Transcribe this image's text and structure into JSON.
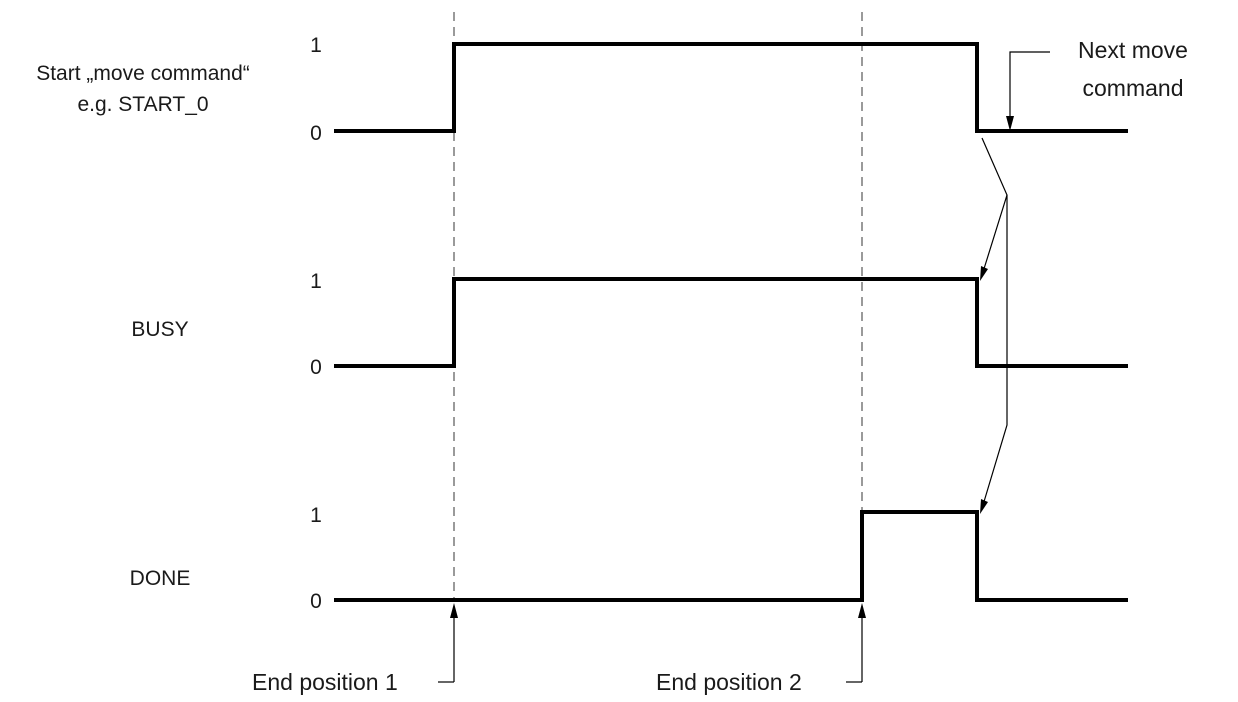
{
  "signals": {
    "start": {
      "label_line1": "Start „move command“",
      "label_line2": "e.g. START_0",
      "level_high": "1",
      "level_low": "0"
    },
    "busy": {
      "label": "BUSY",
      "level_high": "1",
      "level_low": "0"
    },
    "done": {
      "label": "DONE",
      "level_high": "1",
      "level_low": "0"
    }
  },
  "markers": {
    "end_position_1": "End position 1",
    "end_position_2": "End position 2"
  },
  "annotations": {
    "next_move_line1": "Next move",
    "next_move_line2": "command"
  }
}
